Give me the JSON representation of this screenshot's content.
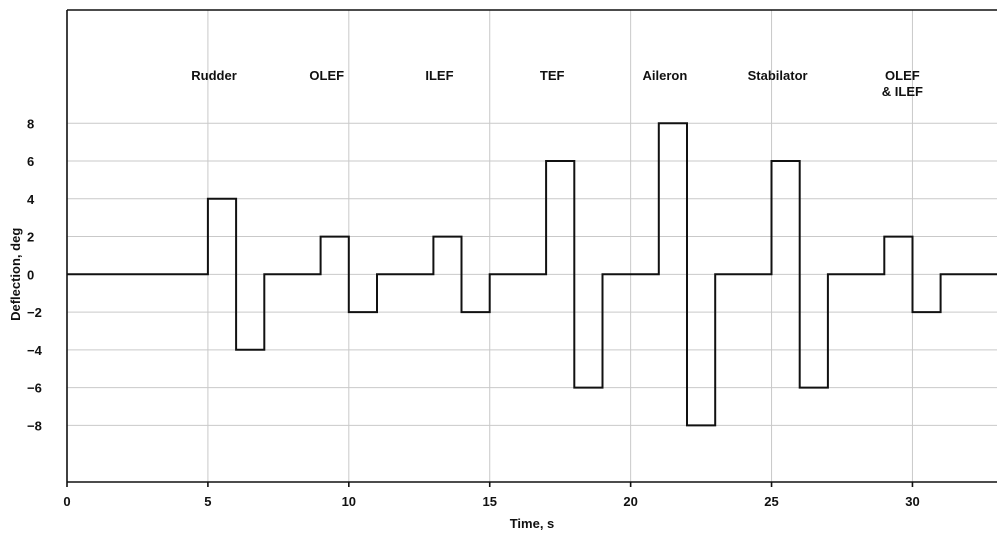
{
  "chart_data": {
    "type": "line",
    "title": "",
    "xlabel": "Time, s",
    "ylabel": "Deflection, deg",
    "xlim": [
      0,
      33
    ],
    "ylim": [
      -11,
      14
    ],
    "x_ticks": [
      0,
      5,
      10,
      15,
      20,
      25,
      30
    ],
    "y_ticks": [
      -8,
      -6,
      -4,
      -2,
      0,
      2,
      4,
      6,
      8
    ],
    "grid": true,
    "series": [
      {
        "x": [
          0,
          5,
          5,
          6,
          6,
          7,
          7,
          9,
          9,
          10,
          10,
          11,
          11,
          13,
          13,
          14,
          14,
          15,
          15,
          17,
          17,
          18,
          18,
          19,
          19,
          21,
          21,
          22,
          22,
          23,
          23,
          25,
          25,
          26,
          26,
          27,
          27,
          29,
          29,
          30,
          30,
          31,
          31,
          33
        ],
        "y": [
          0,
          0,
          4,
          4,
          -4,
          -4,
          0,
          0,
          2,
          2,
          -2,
          -2,
          0,
          0,
          2,
          2,
          -2,
          -2,
          0,
          0,
          6,
          6,
          -6,
          -6,
          0,
          0,
          8,
          8,
          -8,
          -8,
          0,
          0,
          6,
          6,
          -6,
          -6,
          0,
          0,
          2,
          2,
          -2,
          -2,
          0,
          0
        ]
      }
    ],
    "annotations": [
      {
        "lines": [
          "Rudder"
        ],
        "x": 5.5
      },
      {
        "lines": [
          "OLEF"
        ],
        "x": 9.5
      },
      {
        "lines": [
          "ILEF"
        ],
        "x": 13.5
      },
      {
        "lines": [
          "TEF"
        ],
        "x": 17.5
      },
      {
        "lines": [
          "Aileron"
        ],
        "x": 21.5
      },
      {
        "lines": [
          "Stabilator"
        ],
        "x": 25.5
      },
      {
        "lines": [
          "OLEF",
          "& ILEF"
        ],
        "x": 29.5
      }
    ]
  }
}
